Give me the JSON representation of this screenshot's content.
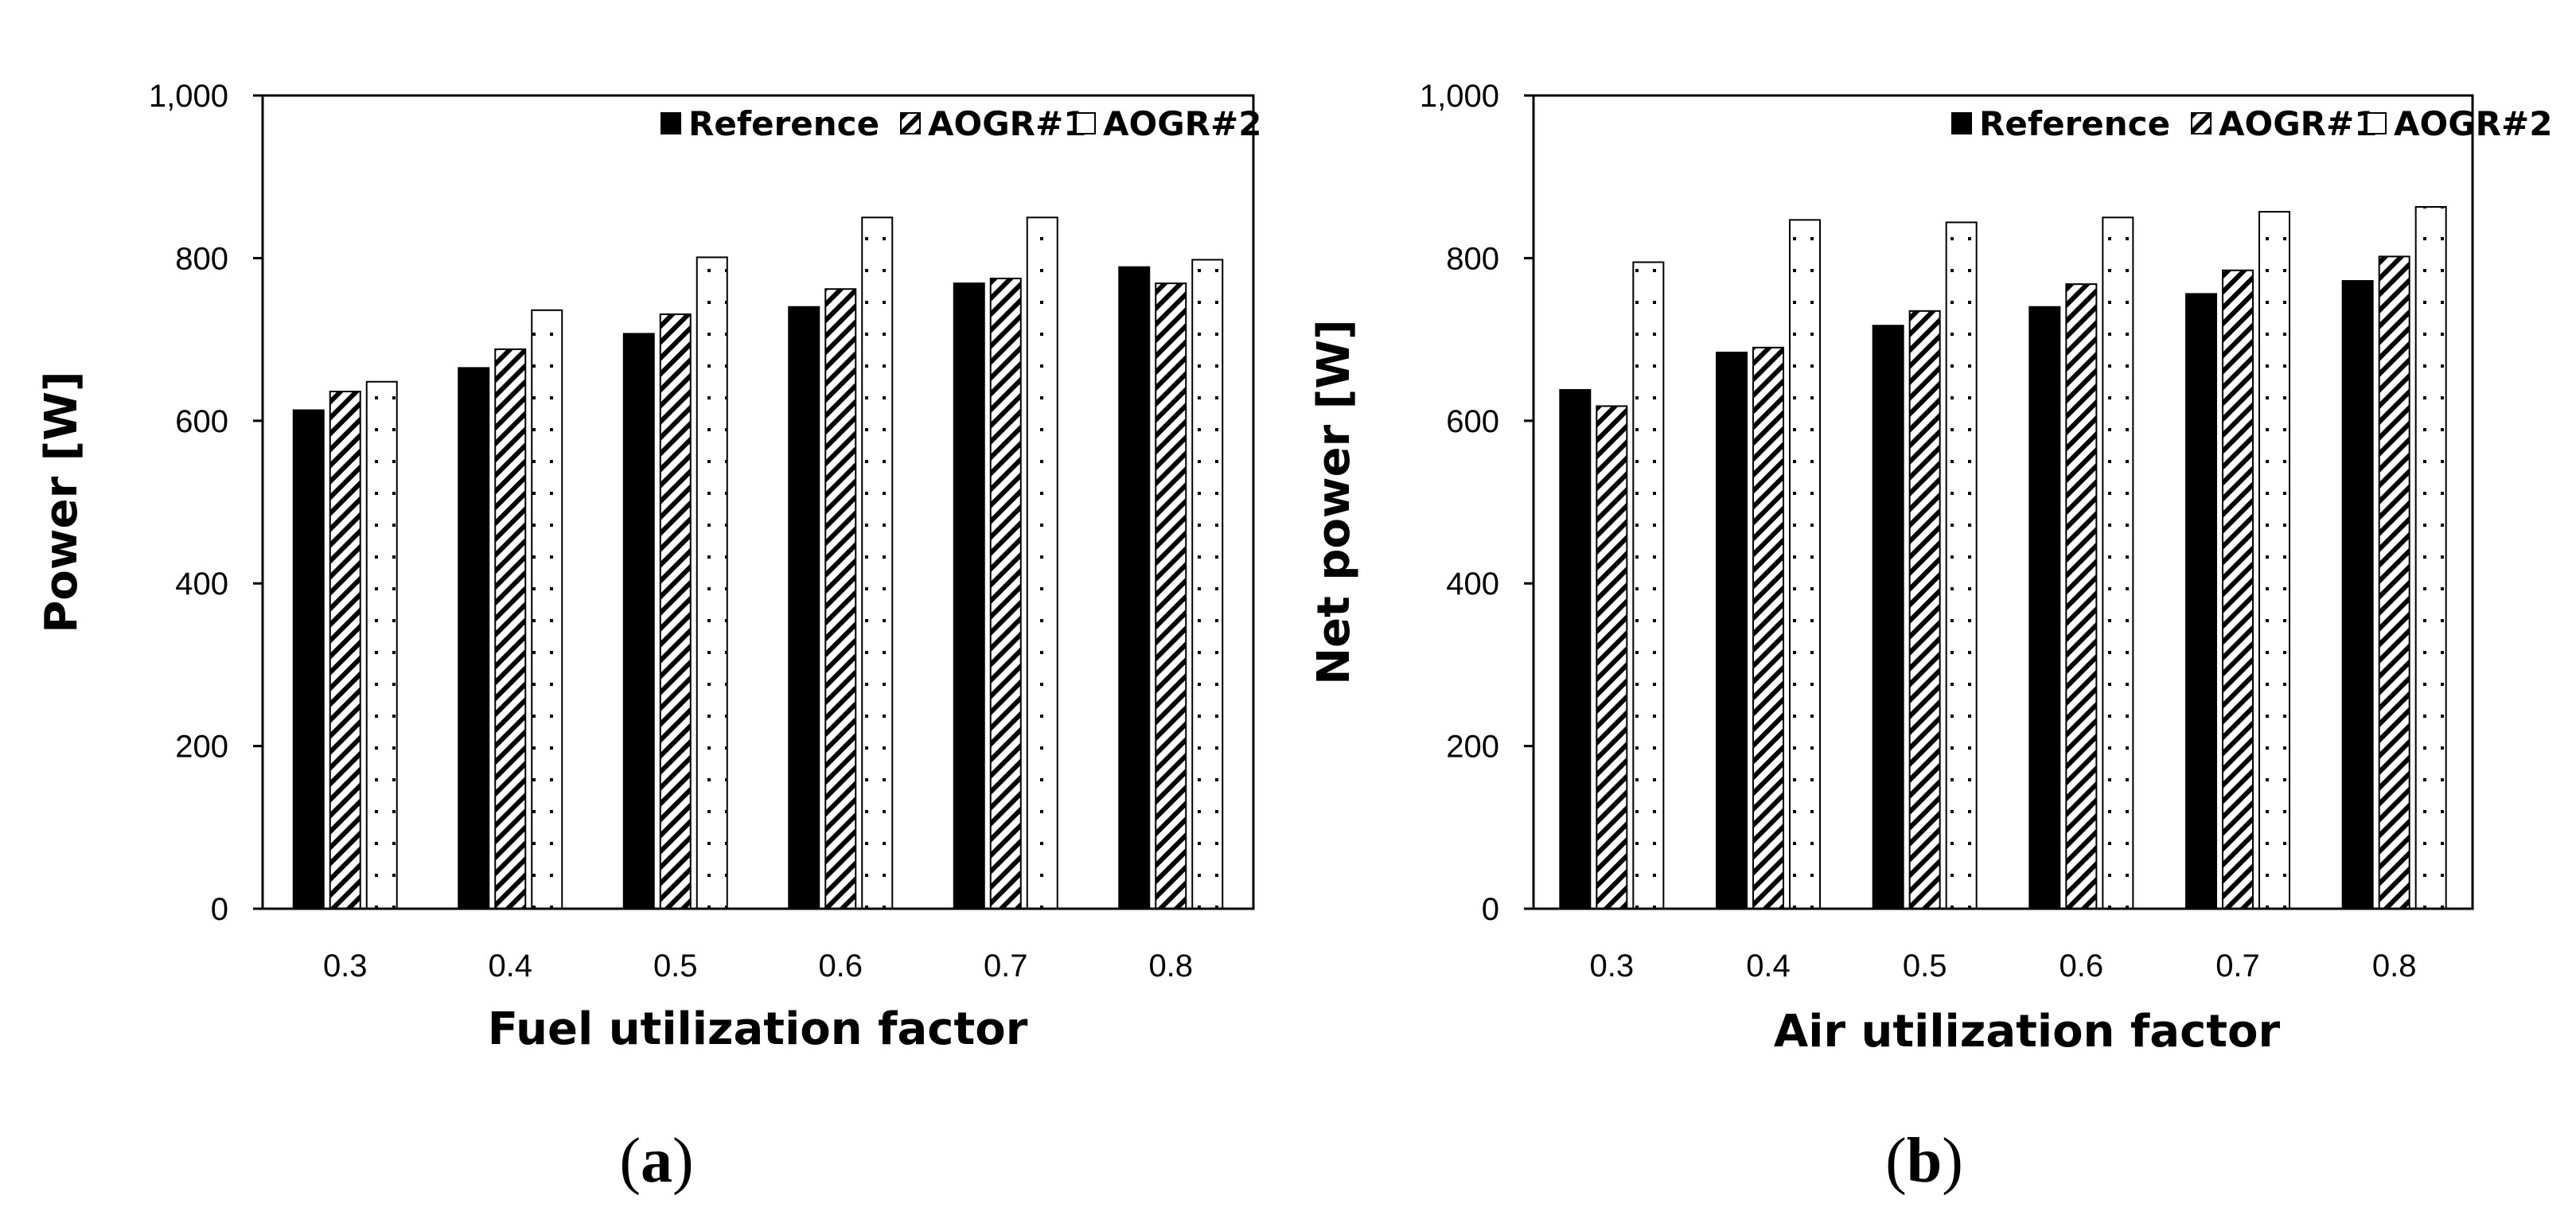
{
  "chart_data": [
    {
      "type": "bar",
      "panel_label": "a",
      "title": "",
      "xlabel": "Fuel utilization factor",
      "ylabel": "Power [W]",
      "ylim": [
        0,
        1000
      ],
      "yticks": [
        0,
        200,
        400,
        600,
        800,
        1000
      ],
      "ytick_labels": [
        "0",
        "200",
        "400",
        "600",
        "800",
        "1,000"
      ],
      "categories": [
        "0.3",
        "0.4",
        "0.5",
        "0.6",
        "0.7",
        "0.8"
      ],
      "legend_position": "top-right",
      "grid": false,
      "series": [
        {
          "name": "Reference",
          "pattern": "solid",
          "values": [
            613,
            665,
            707,
            740,
            769,
            789
          ]
        },
        {
          "name": "AOGR#1",
          "pattern": "diagonal",
          "values": [
            636,
            688,
            731,
            762,
            775,
            769
          ]
        },
        {
          "name": "AOGR#2",
          "pattern": "dotted",
          "values": [
            648,
            736,
            801,
            850,
            850,
            798
          ]
        }
      ]
    },
    {
      "type": "bar",
      "panel_label": "b",
      "title": "",
      "xlabel": "Air utilization factor",
      "ylabel": "Net power [W]",
      "ylim": [
        0,
        1000
      ],
      "yticks": [
        0,
        200,
        400,
        600,
        800,
        1000
      ],
      "ytick_labels": [
        "0",
        "200",
        "400",
        "600",
        "800",
        "1,000"
      ],
      "categories": [
        "0.3",
        "0.4",
        "0.5",
        "0.6",
        "0.7",
        "0.8"
      ],
      "legend_position": "top-right",
      "grid": false,
      "series": [
        {
          "name": "Reference",
          "pattern": "solid",
          "values": [
            638,
            684,
            717,
            740,
            756,
            772
          ]
        },
        {
          "name": "AOGR#1",
          "pattern": "diagonal",
          "values": [
            618,
            690,
            735,
            768,
            785,
            802
          ]
        },
        {
          "name": "AOGR#2",
          "pattern": "dotted",
          "values": [
            795,
            847,
            844,
            850,
            857,
            863
          ]
        }
      ]
    }
  ]
}
